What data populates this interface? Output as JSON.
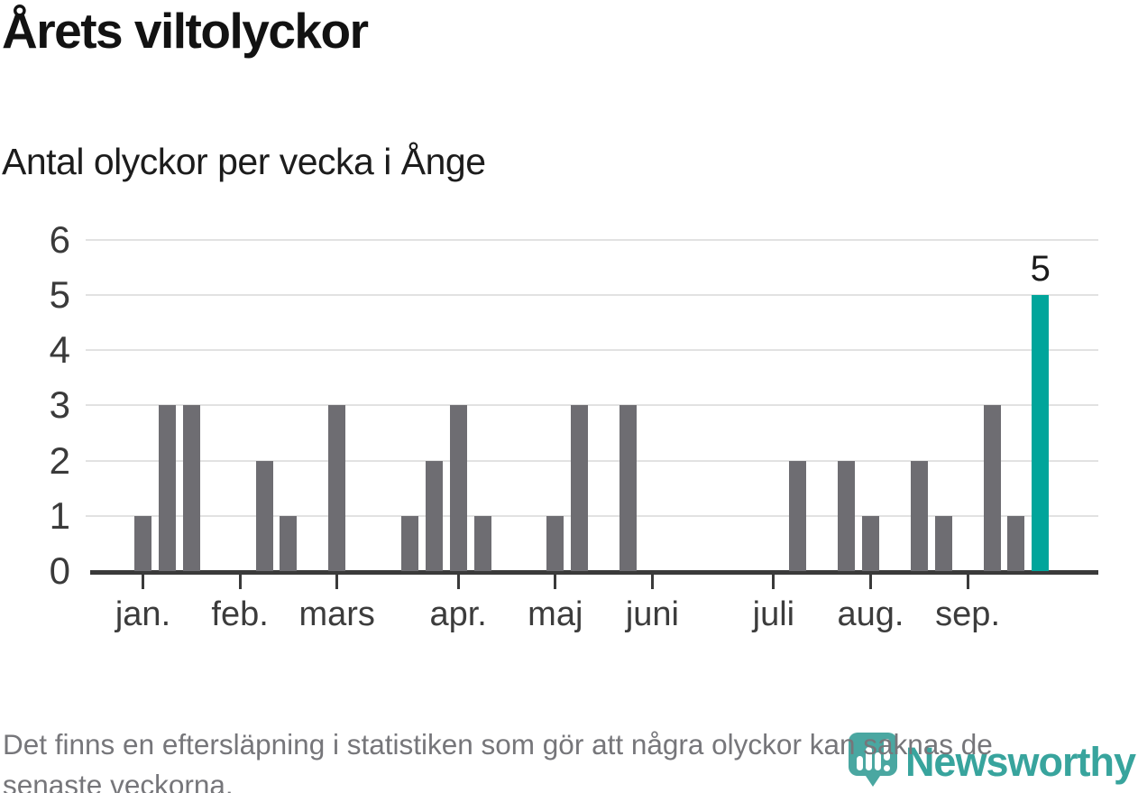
{
  "header": {
    "title": "Årets viltolyckor",
    "subtitle": "Antal olyckor per vecka i Ånge"
  },
  "chart_data": {
    "type": "bar",
    "title": "Årets viltolyckor",
    "subtitle": "Antal olyckor per vecka i Ånge",
    "xlabel": "",
    "ylabel": "",
    "x_unit": "vecka",
    "weeks": [
      1,
      2,
      3,
      4,
      5,
      6,
      7,
      8,
      9,
      10,
      11,
      12,
      13,
      14,
      15,
      16,
      17,
      18,
      19,
      20,
      21,
      22,
      23,
      24,
      25,
      26,
      27,
      28,
      29,
      30,
      31,
      32,
      33,
      34,
      35,
      36,
      37,
      38
    ],
    "values": [
      1,
      3,
      3,
      0,
      0,
      2,
      1,
      0,
      3,
      0,
      0,
      1,
      2,
      3,
      1,
      0,
      0,
      1,
      3,
      0,
      3,
      0,
      0,
      0,
      0,
      0,
      0,
      2,
      0,
      2,
      1,
      0,
      2,
      1,
      0,
      3,
      1,
      5
    ],
    "highlight": {
      "week": 38,
      "value": 5,
      "label": "5"
    },
    "x_axis": {
      "tick_weeks": [
        1,
        5,
        9,
        14,
        18,
        22,
        27,
        31,
        35
      ],
      "tick_labels": [
        "jan.",
        "feb.",
        "mars",
        "apr.",
        "maj",
        "juni",
        "juli",
        "aug.",
        "sep."
      ]
    },
    "y_axis": {
      "ticks": [
        0,
        1,
        2,
        3,
        4,
        5,
        6
      ],
      "range": [
        0,
        6
      ]
    },
    "grid": true,
    "legend": false,
    "colors": {
      "bar": "#6e6d72",
      "highlight": "#00a59b",
      "grid": "#e2e2e2",
      "axis": "#3a3a3a"
    }
  },
  "footer": {
    "disclaimer": "Det finns en eftersläpning i statistiken som gör att några olyckor kan saknas de\nsenaste veckorna."
  },
  "logo": {
    "wordmark": "Newsworthy",
    "icon": "newsworthy-pin-barchart-icon",
    "color": "#38a49d"
  }
}
